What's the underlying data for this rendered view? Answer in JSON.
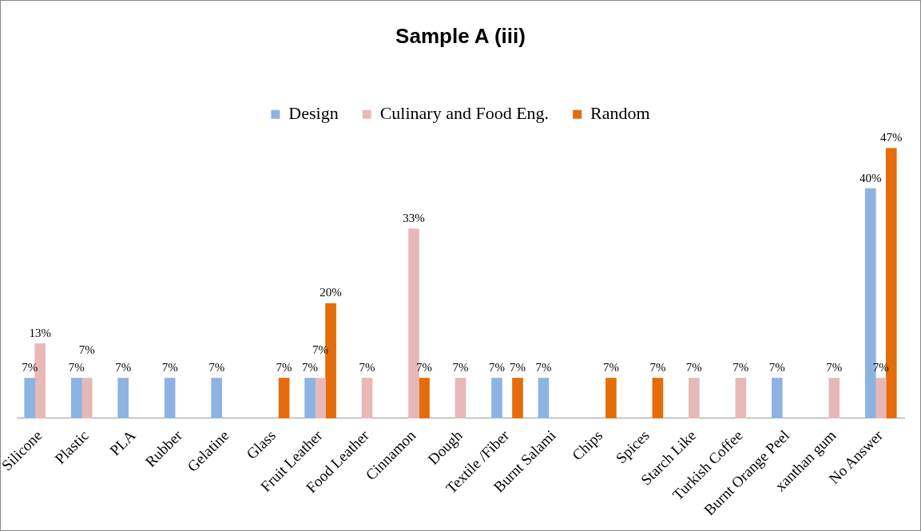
{
  "chart_data": {
    "type": "bar",
    "title": "Sample A (iii)",
    "categories": [
      "Silicone",
      "Plastic",
      "PLA",
      "Rubber",
      "Gelatine",
      "Glass",
      "Fruit Leather",
      "Food Leather",
      "Cinnamon",
      "Dough",
      "Textile /Fiber",
      "Burnt Salami",
      "Chips",
      "Spices",
      "Starch Like",
      "Turkish Coffee",
      "Burnt Orange Peel",
      "xanthan gum",
      "No Answer"
    ],
    "series": [
      {
        "name": "Design",
        "color": "#8db3e2",
        "values": [
          7,
          7,
          7,
          7,
          7,
          null,
          7,
          null,
          null,
          null,
          7,
          7,
          null,
          null,
          null,
          null,
          7,
          null,
          40
        ],
        "value_labels": [
          "7%",
          "7%",
          "7%",
          "7%",
          "7%",
          null,
          "7%",
          null,
          null,
          null,
          "7%",
          "7%",
          null,
          null,
          null,
          null,
          "7%",
          null,
          "40%"
        ]
      },
      {
        "name": "Culinary and Food Eng.",
        "color": "#e6b9b8",
        "values": [
          13,
          7,
          null,
          null,
          null,
          null,
          7,
          7,
          33,
          7,
          null,
          null,
          null,
          null,
          7,
          7,
          null,
          7,
          7
        ],
        "value_labels": [
          "13%",
          "7%",
          null,
          null,
          null,
          null,
          "7%",
          "7%",
          "33%",
          "7%",
          null,
          null,
          null,
          null,
          "7%",
          "7%",
          null,
          "7%",
          "7%"
        ]
      },
      {
        "name": "Random",
        "color": "#e46c0a",
        "values": [
          null,
          null,
          null,
          null,
          null,
          7,
          20,
          null,
          7,
          null,
          7,
          null,
          7,
          7,
          null,
          null,
          null,
          null,
          47
        ],
        "value_labels": [
          null,
          null,
          null,
          null,
          null,
          "7%",
          "20%",
          null,
          "7%",
          null,
          "7%",
          null,
          "7%",
          "7%",
          null,
          null,
          null,
          null,
          "47%"
        ]
      }
    ],
    "legend": "top",
    "grid": false
  }
}
